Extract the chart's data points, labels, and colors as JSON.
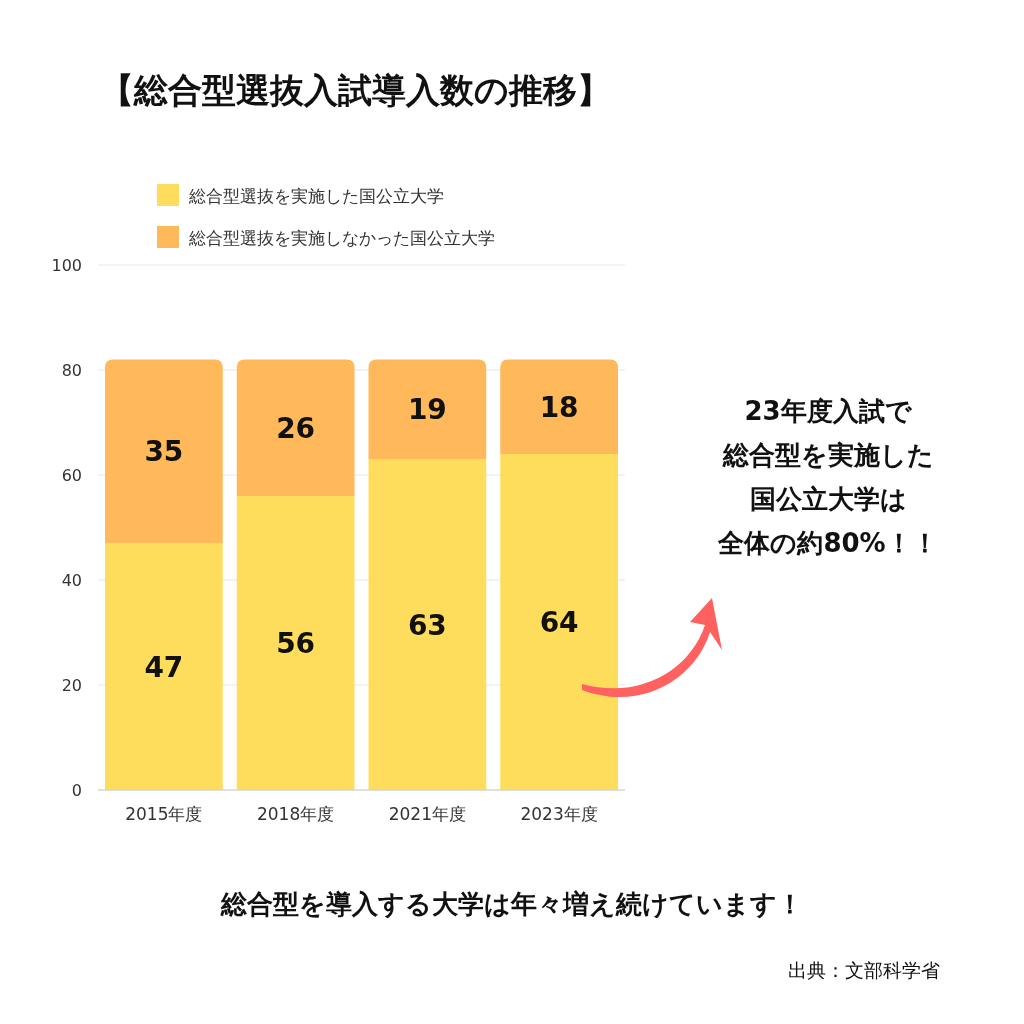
{
  "chart_data": {
    "type": "bar",
    "title": "【総合型選抜入試導入数の推移】",
    "categories": [
      "2015年度",
      "2018年度",
      "2021年度",
      "2023年度"
    ],
    "series": [
      {
        "name": "総合型選抜を実施した国公立大学",
        "color": "#ffdd5c",
        "values": [
          47,
          56,
          63,
          64
        ]
      },
      {
        "name": "総合型選抜を実施しなかった国公立大学",
        "color": "#ffb85a",
        "values": [
          35,
          26,
          19,
          18
        ]
      }
    ],
    "stacked": true,
    "ylim": [
      0,
      100
    ],
    "yticks": [
      0,
      20,
      40,
      60,
      80,
      100
    ],
    "grid": "y",
    "legend": "top",
    "data_labels": true,
    "annotations": [
      "23年度入試で",
      "総合型を実施した",
      "国公立大学は",
      "全体の約80%！！",
      "総合型を導入する大学は年々増え続けています！",
      "出典：文部科学省"
    ]
  }
}
